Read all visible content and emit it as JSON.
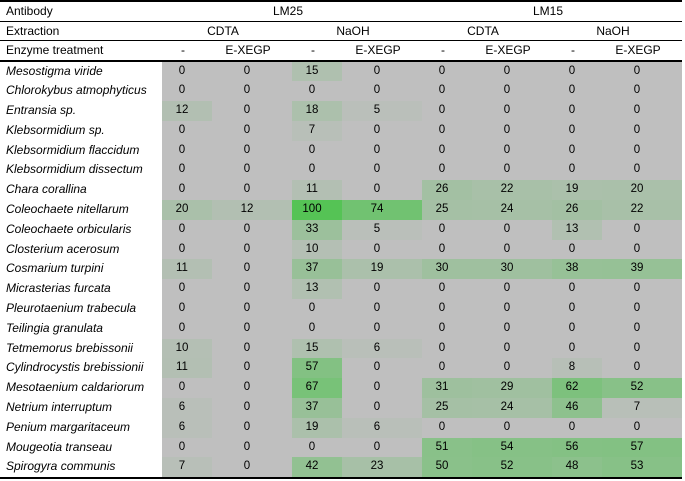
{
  "table_header": {
    "antibody_label": "Antibody",
    "extraction_label": "Extraction",
    "enzyme_label": "Enzyme treatment",
    "antibodies": [
      "LM25",
      "LM15"
    ],
    "extractions": [
      "CDTA",
      "NaOH",
      "CDTA",
      "NaOH"
    ],
    "enzyme_treatments": [
      "-",
      "E-XEGP",
      "-",
      "E-XEGP",
      "-",
      "E-XEGP",
      "-",
      "E-XEGP"
    ]
  },
  "chart_data": {
    "type": "heatmap",
    "title": "",
    "column_groups": [
      {
        "antibody": "LM25",
        "extraction": "CDTA",
        "enzymes": [
          "-",
          "E-XEGP"
        ]
      },
      {
        "antibody": "LM25",
        "extraction": "NaOH",
        "enzymes": [
          "-",
          "E-XEGP"
        ]
      },
      {
        "antibody": "LM15",
        "extraction": "CDTA",
        "enzymes": [
          "-",
          "E-XEGP"
        ]
      },
      {
        "antibody": "LM15",
        "extraction": "NaOH",
        "enzymes": [
          "-",
          "E-XEGP"
        ]
      }
    ],
    "columns": [
      "LM25 CDTA -",
      "LM25 CDTA E-XEGP",
      "LM25 NaOH -",
      "LM25 NaOH E-XEGP",
      "LM15 CDTA -",
      "LM15 CDTA E-XEGP",
      "LM15 NaOH -",
      "LM15 NaOH E-XEGP"
    ],
    "rows": [
      {
        "species": "Mesostigma viride",
        "values": [
          0,
          0,
          15,
          0,
          0,
          0,
          0,
          0
        ]
      },
      {
        "species": "Chlorokybus atmophyticus",
        "values": [
          0,
          0,
          0,
          0,
          0,
          0,
          0,
          0
        ]
      },
      {
        "species": "Entransia sp.",
        "values": [
          12,
          0,
          18,
          5,
          0,
          0,
          0,
          0
        ]
      },
      {
        "species": "Klebsormidium sp.",
        "values": [
          0,
          0,
          7,
          0,
          0,
          0,
          0,
          0
        ]
      },
      {
        "species": "Klebsormidium flaccidum",
        "values": [
          0,
          0,
          0,
          0,
          0,
          0,
          0,
          0
        ]
      },
      {
        "species": "Klebsormidium dissectum",
        "values": [
          0,
          0,
          0,
          0,
          0,
          0,
          0,
          0
        ]
      },
      {
        "species": "Chara corallina",
        "values": [
          0,
          0,
          11,
          0,
          26,
          22,
          19,
          20
        ]
      },
      {
        "species": "Coleochaete nitellarum",
        "values": [
          20,
          12,
          100,
          74,
          25,
          24,
          26,
          22
        ]
      },
      {
        "species": "Coleochaete orbicularis",
        "values": [
          0,
          0,
          33,
          5,
          0,
          0,
          13,
          0
        ]
      },
      {
        "species": "Closterium acerosum",
        "values": [
          0,
          0,
          10,
          0,
          0,
          0,
          0,
          0
        ]
      },
      {
        "species": "Cosmarium turpini",
        "values": [
          11,
          0,
          37,
          19,
          30,
          30,
          38,
          39
        ]
      },
      {
        "species": "Micrasterias furcata",
        "values": [
          0,
          0,
          13,
          0,
          0,
          0,
          0,
          0
        ]
      },
      {
        "species": "Pleurotaenium trabecula",
        "values": [
          0,
          0,
          0,
          0,
          0,
          0,
          0,
          0
        ]
      },
      {
        "species": "Teilingia granulata",
        "values": [
          0,
          0,
          0,
          0,
          0,
          0,
          0,
          0
        ]
      },
      {
        "species": "Tetmemorus brebissonii",
        "values": [
          10,
          0,
          15,
          6,
          0,
          0,
          0,
          0
        ]
      },
      {
        "species": "Cylindrocystis brebissionii",
        "values": [
          11,
          0,
          57,
          0,
          0,
          0,
          8,
          0
        ]
      },
      {
        "species": "Mesotaenium caldariorum",
        "values": [
          0,
          0,
          67,
          0,
          31,
          29,
          62,
          52
        ]
      },
      {
        "species": "Netrium interruptum",
        "values": [
          6,
          0,
          37,
          0,
          25,
          24,
          46,
          7
        ]
      },
      {
        "species": "Penium margaritaceum",
        "values": [
          6,
          0,
          19,
          6,
          0,
          0,
          0,
          0
        ]
      },
      {
        "species": "Mougeotia transeau",
        "values": [
          0,
          0,
          0,
          0,
          51,
          54,
          56,
          57
        ]
      },
      {
        "species": "Spirogyra communis",
        "values": [
          7,
          0,
          42,
          23,
          50,
          52,
          48,
          53
        ]
      }
    ],
    "value_range": [
      0,
      100
    ],
    "colors": {
      "zero_cell": "#BFBFBF",
      "max_cell": "#55C355",
      "border": "#000000",
      "row_label_bg": "#FFFFFF"
    },
    "legend_position": "none",
    "grid": false
  }
}
